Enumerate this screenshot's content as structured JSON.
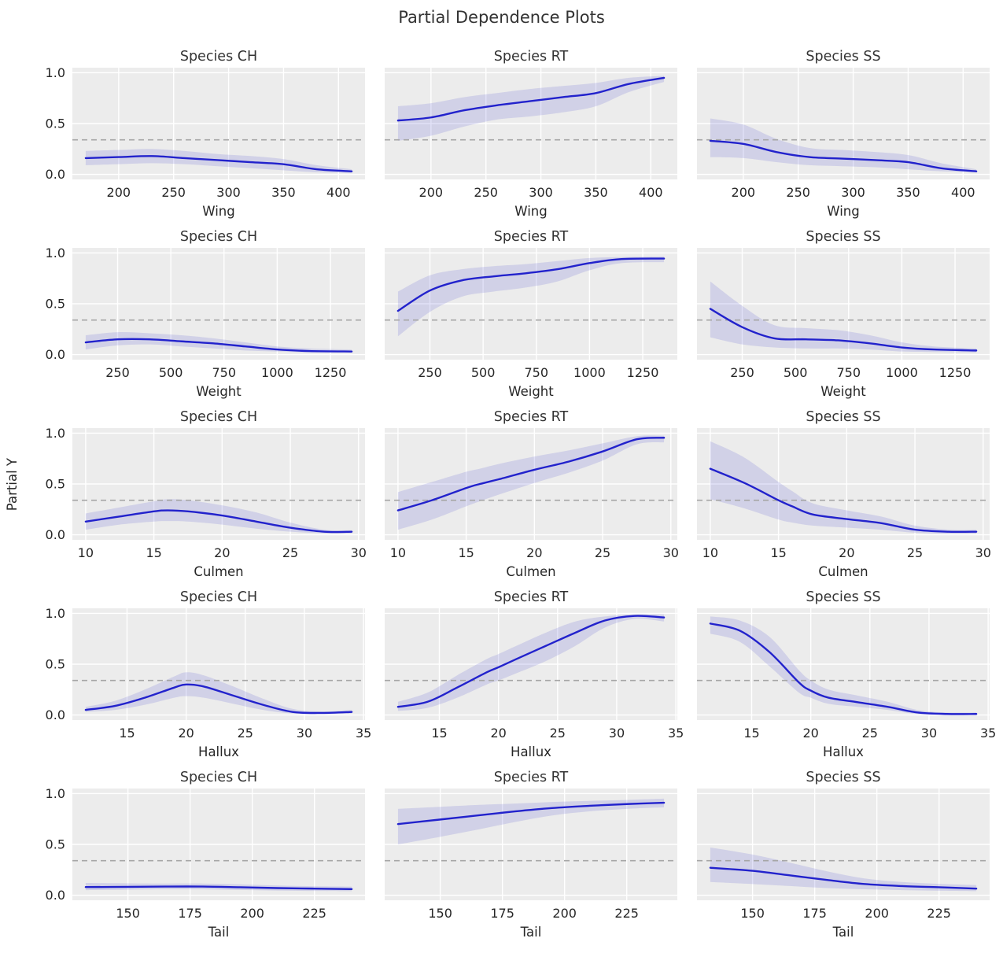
{
  "figure_title": "Partial Dependence Plots",
  "colors": {
    "line": "#2222cc",
    "band": "rgba(68,68,204,0.16)",
    "plot_bg": "#ececec",
    "grid": "#ffffff",
    "baseline": "#a6a6a6",
    "text": "#262626",
    "title": "#333333"
  },
  "chart_data": {
    "type": "line",
    "title": "Partial Dependence Plots",
    "ylabel": "Partial Y",
    "ylim": [
      0,
      1
    ],
    "yticks": [
      0.0,
      0.5,
      1.0
    ],
    "baseline_y": 0.34,
    "grid": true,
    "legend": "none",
    "columns": [
      "Species CH",
      "Species RT",
      "Species SS"
    ],
    "rows": [
      {
        "feature": "Wing",
        "xticks": [
          200,
          250,
          300,
          350,
          400
        ],
        "x": [
          170,
          200,
          230,
          260,
          290,
          320,
          350,
          380,
          412
        ],
        "series": [
          {
            "name": "Species CH",
            "y": [
              0.16,
              0.17,
              0.18,
              0.16,
              0.14,
              0.12,
              0.1,
              0.05,
              0.03
            ],
            "lo": [
              0.09,
              0.1,
              0.11,
              0.1,
              0.08,
              0.06,
              0.04,
              0.02,
              0.015
            ],
            "hi": [
              0.23,
              0.24,
              0.25,
              0.23,
              0.2,
              0.18,
              0.15,
              0.09,
              0.05
            ]
          },
          {
            "name": "Species RT",
            "y": [
              0.53,
              0.56,
              0.63,
              0.68,
              0.72,
              0.76,
              0.8,
              0.89,
              0.95
            ],
            "lo": [
              0.33,
              0.38,
              0.47,
              0.54,
              0.57,
              0.61,
              0.67,
              0.81,
              0.91
            ],
            "hi": [
              0.67,
              0.7,
              0.76,
              0.8,
              0.84,
              0.87,
              0.9,
              0.95,
              0.97
            ]
          },
          {
            "name": "Species SS",
            "y": [
              0.33,
              0.3,
              0.22,
              0.17,
              0.155,
              0.14,
              0.12,
              0.06,
              0.03
            ],
            "lo": [
              0.17,
              0.16,
              0.12,
              0.09,
              0.08,
              0.07,
              0.05,
              0.03,
              0.02
            ],
            "hi": [
              0.55,
              0.49,
              0.35,
              0.26,
              0.24,
              0.22,
              0.19,
              0.11,
              0.05
            ]
          }
        ]
      },
      {
        "feature": "Weight",
        "xticks": [
          250,
          500,
          750,
          1000,
          1250
        ],
        "x": [
          100,
          250,
          400,
          550,
          700,
          850,
          1000,
          1150,
          1350
        ],
        "series": [
          {
            "name": "Species CH",
            "y": [
              0.12,
              0.15,
              0.15,
              0.13,
              0.11,
              0.08,
              0.05,
              0.035,
              0.03
            ],
            "lo": [
              0.05,
              0.09,
              0.1,
              0.08,
              0.06,
              0.04,
              0.03,
              0.02,
              0.02
            ],
            "hi": [
              0.19,
              0.22,
              0.21,
              0.19,
              0.16,
              0.12,
              0.08,
              0.06,
              0.05
            ]
          },
          {
            "name": "Species RT",
            "y": [
              0.43,
              0.63,
              0.73,
              0.77,
              0.8,
              0.84,
              0.9,
              0.94,
              0.945
            ],
            "lo": [
              0.18,
              0.42,
              0.57,
              0.62,
              0.66,
              0.72,
              0.83,
              0.9,
              0.91
            ],
            "hi": [
              0.62,
              0.78,
              0.84,
              0.87,
              0.89,
              0.92,
              0.95,
              0.96,
              0.965
            ]
          },
          {
            "name": "Species SS",
            "y": [
              0.45,
              0.27,
              0.16,
              0.15,
              0.14,
              0.11,
              0.07,
              0.05,
              0.04
            ],
            "lo": [
              0.17,
              0.1,
              0.07,
              0.06,
              0.06,
              0.05,
              0.03,
              0.025,
              0.02
            ],
            "hi": [
              0.72,
              0.48,
              0.29,
              0.26,
              0.24,
              0.19,
              0.12,
              0.08,
              0.06
            ]
          }
        ]
      },
      {
        "feature": "Culmen",
        "xticks": [
          10,
          15,
          20,
          25,
          30
        ],
        "x": [
          10,
          12.5,
          15,
          16,
          17.5,
          20,
          22.5,
          25,
          27.5,
          29.5
        ],
        "series": [
          {
            "name": "Species CH",
            "y": [
              0.13,
              0.18,
              0.23,
              0.24,
              0.23,
              0.19,
              0.13,
              0.07,
              0.03,
              0.03
            ],
            "lo": [
              0.05,
              0.1,
              0.13,
              0.135,
              0.13,
              0.1,
              0.06,
              0.03,
              0.015,
              0.015
            ],
            "hi": [
              0.21,
              0.27,
              0.33,
              0.35,
              0.34,
              0.29,
              0.22,
              0.12,
              0.05,
              0.045
            ]
          },
          {
            "name": "Species RT",
            "y": [
              0.24,
              0.34,
              0.46,
              0.5,
              0.55,
              0.64,
              0.72,
              0.82,
              0.94,
              0.955
            ],
            "lo": [
              0.05,
              0.15,
              0.28,
              0.33,
              0.4,
              0.51,
              0.61,
              0.73,
              0.89,
              0.91
            ],
            "hi": [
              0.42,
              0.52,
              0.62,
              0.65,
              0.7,
              0.77,
              0.83,
              0.9,
              0.97,
              0.975
            ]
          },
          {
            "name": "Species SS",
            "y": [
              0.65,
              0.51,
              0.34,
              0.28,
              0.2,
              0.155,
              0.115,
              0.05,
              0.03,
              0.03
            ],
            "lo": [
              0.35,
              0.26,
              0.15,
              0.12,
              0.09,
              0.07,
              0.05,
              0.02,
              0.01,
              0.01
            ],
            "hi": [
              0.92,
              0.76,
              0.52,
              0.43,
              0.31,
              0.24,
              0.18,
              0.09,
              0.05,
              0.05
            ]
          }
        ]
      },
      {
        "feature": "Hallux",
        "xticks": [
          15,
          20,
          25,
          30,
          35
        ],
        "x": [
          11.5,
          14,
          16.5,
          19,
          20,
          21.5,
          24,
          26.5,
          29,
          31.5,
          34
        ],
        "series": [
          {
            "name": "Species CH",
            "y": [
              0.05,
              0.09,
              0.17,
              0.27,
              0.3,
              0.28,
              0.19,
              0.1,
              0.03,
              0.02,
              0.03
            ],
            "lo": [
              0.03,
              0.05,
              0.1,
              0.17,
              0.185,
              0.17,
              0.11,
              0.05,
              0.015,
              0.01,
              0.015
            ],
            "hi": [
              0.08,
              0.14,
              0.25,
              0.38,
              0.42,
              0.39,
              0.28,
              0.16,
              0.06,
              0.035,
              0.05
            ]
          },
          {
            "name": "Species RT",
            "y": [
              0.08,
              0.13,
              0.27,
              0.42,
              0.47,
              0.55,
              0.68,
              0.81,
              0.93,
              0.975,
              0.96
            ],
            "lo": [
              0.04,
              0.07,
              0.17,
              0.3,
              0.34,
              0.41,
              0.53,
              0.68,
              0.86,
              0.945,
              0.92
            ],
            "hi": [
              0.13,
              0.22,
              0.39,
              0.55,
              0.6,
              0.68,
              0.81,
              0.92,
              0.97,
              0.99,
              0.99
            ]
          },
          {
            "name": "Species SS",
            "y": [
              0.9,
              0.83,
              0.62,
              0.32,
              0.24,
              0.17,
              0.125,
              0.08,
              0.025,
              0.01,
              0.01
            ],
            "lo": [
              0.8,
              0.72,
              0.48,
              0.22,
              0.17,
              0.11,
              0.08,
              0.05,
              0.01,
              0.005,
              0.005
            ],
            "hi": [
              0.97,
              0.93,
              0.77,
              0.44,
              0.34,
              0.25,
              0.19,
              0.13,
              0.05,
              0.025,
              0.025
            ]
          }
        ]
      },
      {
        "feature": "Tail",
        "xticks": [
          150,
          175,
          200,
          225
        ],
        "x": [
          133,
          150,
          165,
          180,
          195,
          210,
          225,
          240
        ],
        "series": [
          {
            "name": "Species CH",
            "y": [
              0.08,
              0.082,
              0.085,
              0.085,
              0.078,
              0.07,
              0.065,
              0.06
            ],
            "lo": [
              0.05,
              0.055,
              0.058,
              0.058,
              0.052,
              0.046,
              0.042,
              0.04
            ],
            "hi": [
              0.12,
              0.117,
              0.115,
              0.115,
              0.107,
              0.095,
              0.088,
              0.085
            ]
          },
          {
            "name": "Species RT",
            "y": [
              0.7,
              0.745,
              0.785,
              0.825,
              0.858,
              0.88,
              0.897,
              0.91
            ],
            "lo": [
              0.5,
              0.575,
              0.645,
              0.72,
              0.785,
              0.825,
              0.85,
              0.865
            ],
            "hi": [
              0.85,
              0.87,
              0.888,
              0.902,
              0.917,
              0.928,
              0.938,
              0.95
            ]
          },
          {
            "name": "Species SS",
            "y": [
              0.27,
              0.24,
              0.195,
              0.15,
              0.11,
              0.09,
              0.078,
              0.065
            ],
            "lo": [
              0.13,
              0.11,
              0.09,
              0.07,
              0.058,
              0.05,
              0.044,
              0.04
            ],
            "hi": [
              0.47,
              0.4,
              0.32,
              0.235,
              0.165,
              0.13,
              0.112,
              0.1
            ]
          }
        ]
      }
    ]
  }
}
